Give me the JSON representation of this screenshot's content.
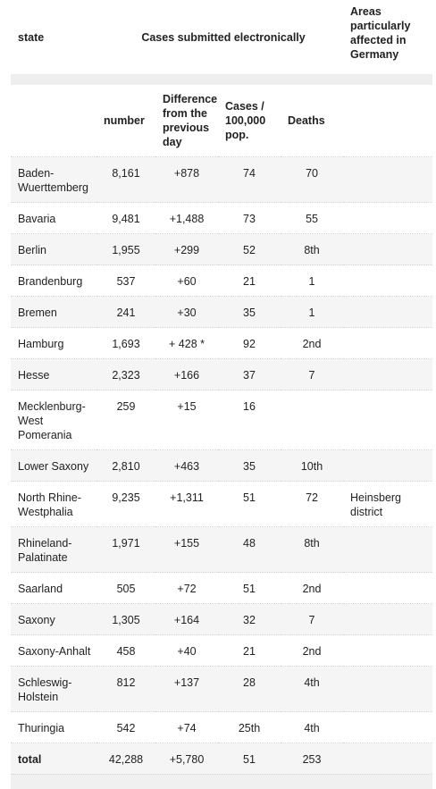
{
  "header": {
    "state": "state",
    "cases_group": "Cases submitted electronically",
    "areas": "Areas particularly affected in Germany",
    "number": "number",
    "difference": "Difference from the previous day",
    "cases_per_100k": "Cases / 100,000 pop.",
    "deaths": "Deaths"
  },
  "rows": [
    {
      "state": "Baden-Wuerttemberg",
      "number": "8,161",
      "difference": "+878",
      "per100k": "74",
      "deaths": "70",
      "areas": ""
    },
    {
      "state": "Bavaria",
      "number": "9,481",
      "difference": "+1,488",
      "per100k": "73",
      "deaths": "55",
      "areas": ""
    },
    {
      "state": "Berlin",
      "number": "1,955",
      "difference": "+299",
      "per100k": "52",
      "deaths": "8th",
      "areas": ""
    },
    {
      "state": "Brandenburg",
      "number": "537",
      "difference": "+60",
      "per100k": "21",
      "deaths": "1",
      "areas": ""
    },
    {
      "state": "Bremen",
      "number": "241",
      "difference": "+30",
      "per100k": "35",
      "deaths": "1",
      "areas": ""
    },
    {
      "state": "Hamburg",
      "number": "1,693",
      "difference": "+ 428 *",
      "per100k": "92",
      "deaths": "2nd",
      "areas": ""
    },
    {
      "state": "Hesse",
      "number": "2,323",
      "difference": "+166",
      "per100k": "37",
      "deaths": "7",
      "areas": ""
    },
    {
      "state": "Mecklenburg-West Pomerania",
      "number": "259",
      "difference": "+15",
      "per100k": "16",
      "deaths": "",
      "areas": ""
    },
    {
      "state": "Lower Saxony",
      "number": "2,810",
      "difference": "+463",
      "per100k": "35",
      "deaths": "10th",
      "areas": ""
    },
    {
      "state": "North Rhine-Westphalia",
      "number": "9,235",
      "difference": "+1,311",
      "per100k": "51",
      "deaths": "72",
      "areas": "Heinsberg district"
    },
    {
      "state": "Rhineland-Palatinate",
      "number": "1,971",
      "difference": "+155",
      "per100k": "48",
      "deaths": "8th",
      "areas": ""
    },
    {
      "state": "Saarland",
      "number": "505",
      "difference": "+72",
      "per100k": "51",
      "deaths": "2nd",
      "areas": ""
    },
    {
      "state": "Saxony",
      "number": "1,305",
      "difference": "+164",
      "per100k": "32",
      "deaths": "7",
      "areas": ""
    },
    {
      "state": "Saxony-Anhalt",
      "number": "458",
      "difference": "+40",
      "per100k": "21",
      "deaths": "2nd",
      "areas": ""
    },
    {
      "state": "Schleswig-Holstein",
      "number": "812",
      "difference": "+137",
      "per100k": "28",
      "deaths": "4th",
      "areas": ""
    },
    {
      "state": "Thuringia",
      "number": "542",
      "difference": "+74",
      "per100k": "25th",
      "deaths": "4th",
      "areas": ""
    },
    {
      "state": "total",
      "number": "42,288",
      "difference": "+5,780",
      "per100k": "51",
      "deaths": "253",
      "areas": ""
    }
  ]
}
